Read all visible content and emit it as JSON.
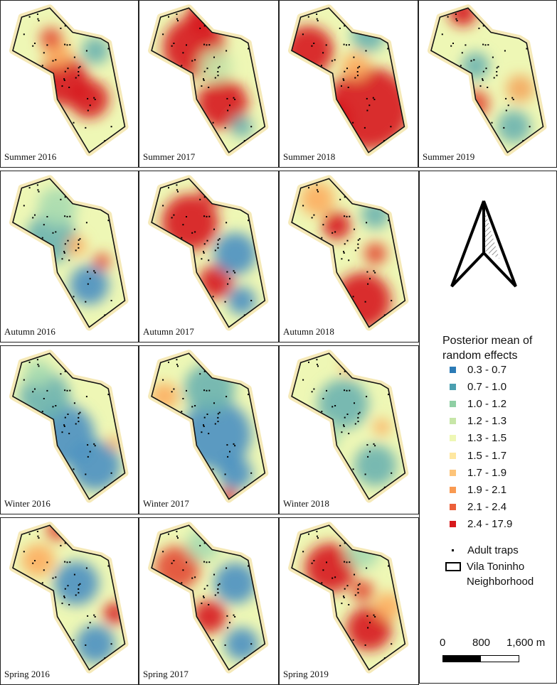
{
  "panels": [
    {
      "label": "Summer 2016",
      "blobs": [
        [
          "#d7191c",
          0.45,
          0.5,
          0.18
        ],
        [
          "#d7191c",
          0.65,
          0.62,
          0.14
        ],
        [
          "#fdae61",
          0.4,
          0.32,
          0.1
        ],
        [
          "#e34a33",
          0.35,
          0.22,
          0.08
        ],
        [
          "#6bb3b0",
          0.7,
          0.3,
          0.1
        ]
      ]
    },
    {
      "label": "Summer 2017",
      "blobs": [
        [
          "#d7191c",
          0.38,
          0.28,
          0.22
        ],
        [
          "#d7191c",
          0.6,
          0.65,
          0.18
        ],
        [
          "#d7191c",
          0.45,
          0.08,
          0.12
        ],
        [
          "#6bb3b0",
          0.75,
          0.8,
          0.08
        ],
        [
          "#c7e6a8",
          0.55,
          0.4,
          0.12
        ]
      ]
    },
    {
      "label": "Summer 2018",
      "blobs": [
        [
          "#d7191c",
          0.18,
          0.3,
          0.18
        ],
        [
          "#d7191c",
          0.65,
          0.68,
          0.3
        ],
        [
          "#d7191c",
          0.35,
          0.75,
          0.15
        ],
        [
          "#6bb3b0",
          0.65,
          0.2,
          0.12
        ],
        [
          "#fdae61",
          0.55,
          0.4,
          0.1
        ]
      ]
    },
    {
      "label": "Summer 2019",
      "blobs": [
        [
          "#d7191c",
          0.3,
          0.05,
          0.1
        ],
        [
          "#e34a33",
          0.4,
          0.65,
          0.1
        ],
        [
          "#f4a75e",
          0.75,
          0.55,
          0.1
        ],
        [
          "#6bb3b0",
          0.7,
          0.8,
          0.12
        ],
        [
          "#6bb3b0",
          0.4,
          0.4,
          0.1
        ]
      ]
    },
    {
      "label": "Autumn 2016",
      "blobs": [
        [
          "#6bb3b0",
          0.35,
          0.4,
          0.18
        ],
        [
          "#4a90c2",
          0.65,
          0.7,
          0.14
        ],
        [
          "#e34a33",
          0.75,
          0.55,
          0.06
        ],
        [
          "#fdae61",
          0.55,
          0.45,
          0.07
        ],
        [
          "#a8dbb0",
          0.4,
          0.2,
          0.14
        ]
      ]
    },
    {
      "label": "Autumn 2017",
      "blobs": [
        [
          "#d7191c",
          0.35,
          0.3,
          0.2
        ],
        [
          "#d7191c",
          0.55,
          0.08,
          0.1
        ],
        [
          "#d7191c",
          0.55,
          0.68,
          0.12
        ],
        [
          "#4a90c2",
          0.7,
          0.5,
          0.15
        ],
        [
          "#4a90c2",
          0.75,
          0.8,
          0.1
        ]
      ]
    },
    {
      "label": "Autumn 2018",
      "blobs": [
        [
          "#d7191c",
          0.6,
          0.8,
          0.2
        ],
        [
          "#d7191c",
          0.4,
          0.32,
          0.1
        ],
        [
          "#e34a33",
          0.7,
          0.5,
          0.08
        ],
        [
          "#6bb3b0",
          0.7,
          0.25,
          0.1
        ],
        [
          "#fdae61",
          0.25,
          0.15,
          0.12
        ]
      ]
    },
    {
      "label": "Winter 2016",
      "blobs": [
        [
          "#4a90c2",
          0.45,
          0.55,
          0.22
        ],
        [
          "#4a90c2",
          0.7,
          0.75,
          0.18
        ],
        [
          "#6bb3b0",
          0.3,
          0.3,
          0.18
        ],
        [
          "#fdae61",
          0.85,
          0.6,
          0.05
        ],
        [
          "#a8dbb0",
          0.25,
          0.15,
          0.1
        ]
      ]
    },
    {
      "label": "Winter 2017",
      "blobs": [
        [
          "#4a90c2",
          0.55,
          0.55,
          0.25
        ],
        [
          "#6bb3b0",
          0.5,
          0.25,
          0.18
        ],
        [
          "#fdae61",
          0.15,
          0.3,
          0.1
        ],
        [
          "#d7191c",
          0.65,
          0.95,
          0.06
        ],
        [
          "#4a90c2",
          0.7,
          0.8,
          0.12
        ]
      ]
    },
    {
      "label": "Winter 2018",
      "blobs": [
        [
          "#6bb3b0",
          0.45,
          0.35,
          0.18
        ],
        [
          "#6bb3b0",
          0.7,
          0.75,
          0.15
        ],
        [
          "#fdae61",
          0.5,
          0.1,
          0.06
        ],
        [
          "#fdae61",
          0.75,
          0.5,
          0.06
        ],
        [
          "#a8dbb0",
          0.3,
          0.55,
          0.12
        ]
      ]
    },
    {
      "label": "Spring 2016",
      "blobs": [
        [
          "#4a90c2",
          0.55,
          0.4,
          0.16
        ],
        [
          "#4a90c2",
          0.7,
          0.8,
          0.14
        ],
        [
          "#d7191c",
          0.85,
          0.6,
          0.08
        ],
        [
          "#fdae61",
          0.25,
          0.25,
          0.12
        ],
        [
          "#e34a33",
          0.4,
          0.05,
          0.08
        ]
      ]
    },
    {
      "label": "Spring 2017",
      "blobs": [
        [
          "#e34a33",
          0.25,
          0.3,
          0.16
        ],
        [
          "#d7191c",
          0.5,
          0.62,
          0.12
        ],
        [
          "#4a90c2",
          0.7,
          0.4,
          0.15
        ],
        [
          "#4a90c2",
          0.75,
          0.8,
          0.12
        ],
        [
          "#a8dbb0",
          0.45,
          0.15,
          0.12
        ]
      ]
    },
    {
      "label": "Spring 2019",
      "blobs": [
        [
          "#d7191c",
          0.35,
          0.3,
          0.18
        ],
        [
          "#d7191c",
          0.65,
          0.7,
          0.16
        ],
        [
          "#e34a33",
          0.6,
          0.45,
          0.08
        ],
        [
          "#fdae61",
          0.8,
          0.55,
          0.1
        ],
        [
          "#a8dbb0",
          0.6,
          0.2,
          0.12
        ]
      ]
    }
  ],
  "legend": {
    "title_line1": "Posterior mean of",
    "title_line2": "random effects",
    "classes": [
      {
        "label": "0.3 - 0.7",
        "color": "#2c7bb6"
      },
      {
        "label": "0.7 - 1.0",
        "color": "#4a9fb0"
      },
      {
        "label": "1.0 - 1.2",
        "color": "#8fcfa4"
      },
      {
        "label": "1.2 - 1.3",
        "color": "#c7e6a8"
      },
      {
        "label": "1.3 - 1.5",
        "color": "#eef7b5"
      },
      {
        "label": "1.5 - 1.7",
        "color": "#fee7a0"
      },
      {
        "label": "1.7 - 1.9",
        "color": "#fdc47a"
      },
      {
        "label": "1.9 - 2.1",
        "color": "#f99a52"
      },
      {
        "label": "2.1 - 2.4",
        "color": "#ec5f3a"
      },
      {
        "label": "2.4 - 17.9",
        "color": "#d7191c"
      }
    ],
    "traps_label": "Adult traps",
    "boundary_line1": "Vila Toninho",
    "boundary_line2": "Neighborhood"
  },
  "scale": {
    "labels": [
      "0",
      "800",
      "1,600 m"
    ]
  }
}
